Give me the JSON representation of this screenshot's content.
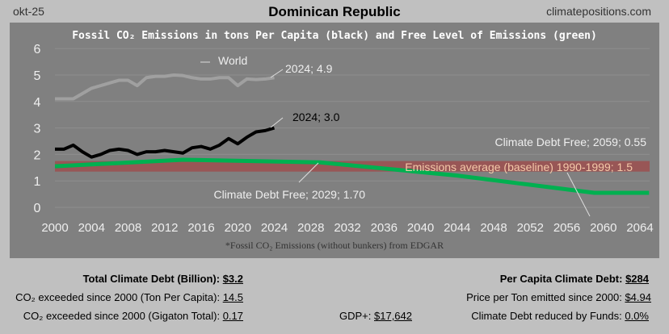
{
  "header": {
    "date": "okt-25",
    "title": "Dominican Republic",
    "site": "climatepositions.com"
  },
  "chart_data": {
    "type": "line",
    "title": "Fossil CO₂ Emissions in tons Per Capita (black) and Free Level of Emissions (green)",
    "footnote": "*Fossil CO₂ Emissions (without bunkers) from EDGAR",
    "xlim": [
      2000,
      2065
    ],
    "ylim": [
      0,
      6
    ],
    "x_ticks": [
      2000,
      2004,
      2008,
      2012,
      2016,
      2020,
      2024,
      2028,
      2032,
      2036,
      2040,
      2044,
      2048,
      2052,
      2056,
      2060,
      2064
    ],
    "y_ticks": [
      0,
      1,
      2,
      3,
      4,
      5,
      6
    ],
    "grid": true,
    "series": [
      {
        "name": "World",
        "color": "#a0a0a0",
        "x": [
          2000,
          2001,
          2002,
          2003,
          2004,
          2005,
          2006,
          2007,
          2008,
          2009,
          2010,
          2011,
          2012,
          2013,
          2014,
          2015,
          2016,
          2017,
          2018,
          2019,
          2020,
          2021,
          2022,
          2023,
          2024
        ],
        "values": [
          4.1,
          4.1,
          4.1,
          4.3,
          4.5,
          4.6,
          4.7,
          4.8,
          4.8,
          4.6,
          4.9,
          4.95,
          4.95,
          5.0,
          4.98,
          4.9,
          4.85,
          4.85,
          4.9,
          4.9,
          4.6,
          4.85,
          4.83,
          4.85,
          4.9
        ]
      },
      {
        "color": "#000000",
        "x": [
          2000,
          2001,
          2002,
          2003,
          2004,
          2005,
          2006,
          2007,
          2008,
          2009,
          2010,
          2011,
          2012,
          2013,
          2014,
          2015,
          2016,
          2017,
          2018,
          2019,
          2020,
          2021,
          2022,
          2023,
          2024
        ],
        "values": [
          2.2,
          2.2,
          2.35,
          2.1,
          1.9,
          2.0,
          2.15,
          2.2,
          2.15,
          2.0,
          2.1,
          2.1,
          2.15,
          2.1,
          2.05,
          2.25,
          2.3,
          2.2,
          2.35,
          2.6,
          2.4,
          2.65,
          2.85,
          2.9,
          3.0
        ]
      },
      {
        "color": "#00b050",
        "x": [
          2000,
          2014,
          2029,
          2044,
          2059,
          2065
        ],
        "values": [
          1.55,
          1.8,
          1.7,
          1.2,
          0.55,
          0.55
        ]
      }
    ],
    "baseline": {
      "value": 1.5,
      "color": "#a04848"
    },
    "annotations": {
      "world": "World",
      "world_end": "2024; 4.9",
      "country_end": "2024; 3.0",
      "free_2059": "Climate Debt Free; 2059; 0.55",
      "baseline": "Emissions average (baseline) 1990-1999; 1.5",
      "free_2029": "Climate Debt Free; 2029; 1.70"
    }
  },
  "stats": {
    "total_label": "Total Climate Debt (Billion):",
    "total": "$3.2",
    "exceeded_pc_label": "CO₂ exceeded since 2000 (Ton Per Capita):",
    "exceeded_pc": "14.5",
    "exceeded_gt_label": "CO₂ exceeded since 2000 (Gigaton Total):",
    "exceeded_gt": "0.17",
    "gdp_label": "GDP+:",
    "gdp": "$17,642",
    "per_capita_label": "Per Capita Climate Debt:",
    "per_capita": "$284",
    "price_label": "Price per Ton emitted since 2000:",
    "price": "$4.94",
    "funds_label": "Climate Debt reduced by Funds:",
    "funds": "0.0%"
  }
}
